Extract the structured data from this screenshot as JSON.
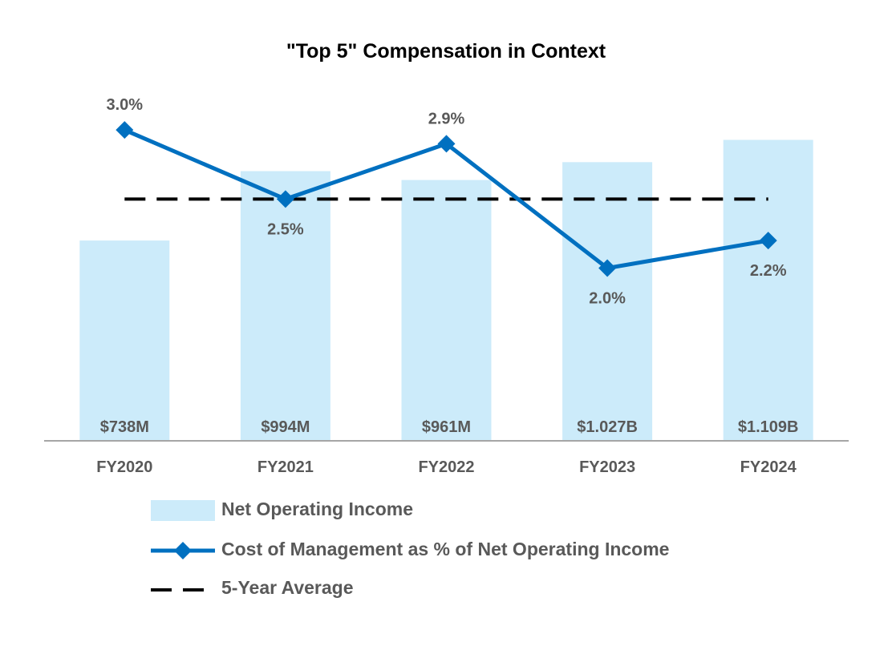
{
  "chart_data": {
    "type": "bar",
    "title": "\"Top 5\" Compensation in Context",
    "categories": [
      "FY2020",
      "FY2021",
      "FY2022",
      "FY2023",
      "FY2024"
    ],
    "series": [
      {
        "name": "Net Operating Income",
        "kind": "bar",
        "values": [
          738,
          994,
          961,
          1027,
          1109
        ],
        "labels": [
          "$738M",
          "$994M",
          "$961M",
          "$1.027B",
          "$1.109B"
        ],
        "unit": "$M",
        "color": "#CCEBFA"
      },
      {
        "name": "Cost of Management as % of Net Operating Income",
        "kind": "line",
        "values": [
          3.0,
          2.5,
          2.9,
          2.0,
          2.2
        ],
        "labels": [
          "3.0%",
          "2.5%",
          "2.9%",
          "2.0%",
          "2.2%"
        ],
        "unit": "%",
        "color": "#0070C0",
        "marker": "diamond"
      },
      {
        "name": "5-Year Average",
        "kind": "line",
        "value": 2.5,
        "unit": "%",
        "style": "dashed",
        "color": "#000000"
      }
    ],
    "bar_axis": {
      "ylim": [
        0,
        1400
      ]
    },
    "line_axis": {
      "ylim": [
        0.75,
        3.5
      ]
    },
    "xlabel": "",
    "ylabel": "",
    "grid": false,
    "legend_position": "bottom"
  },
  "colors": {
    "label_text": "#595959",
    "axis": "#A6A6A6"
  }
}
